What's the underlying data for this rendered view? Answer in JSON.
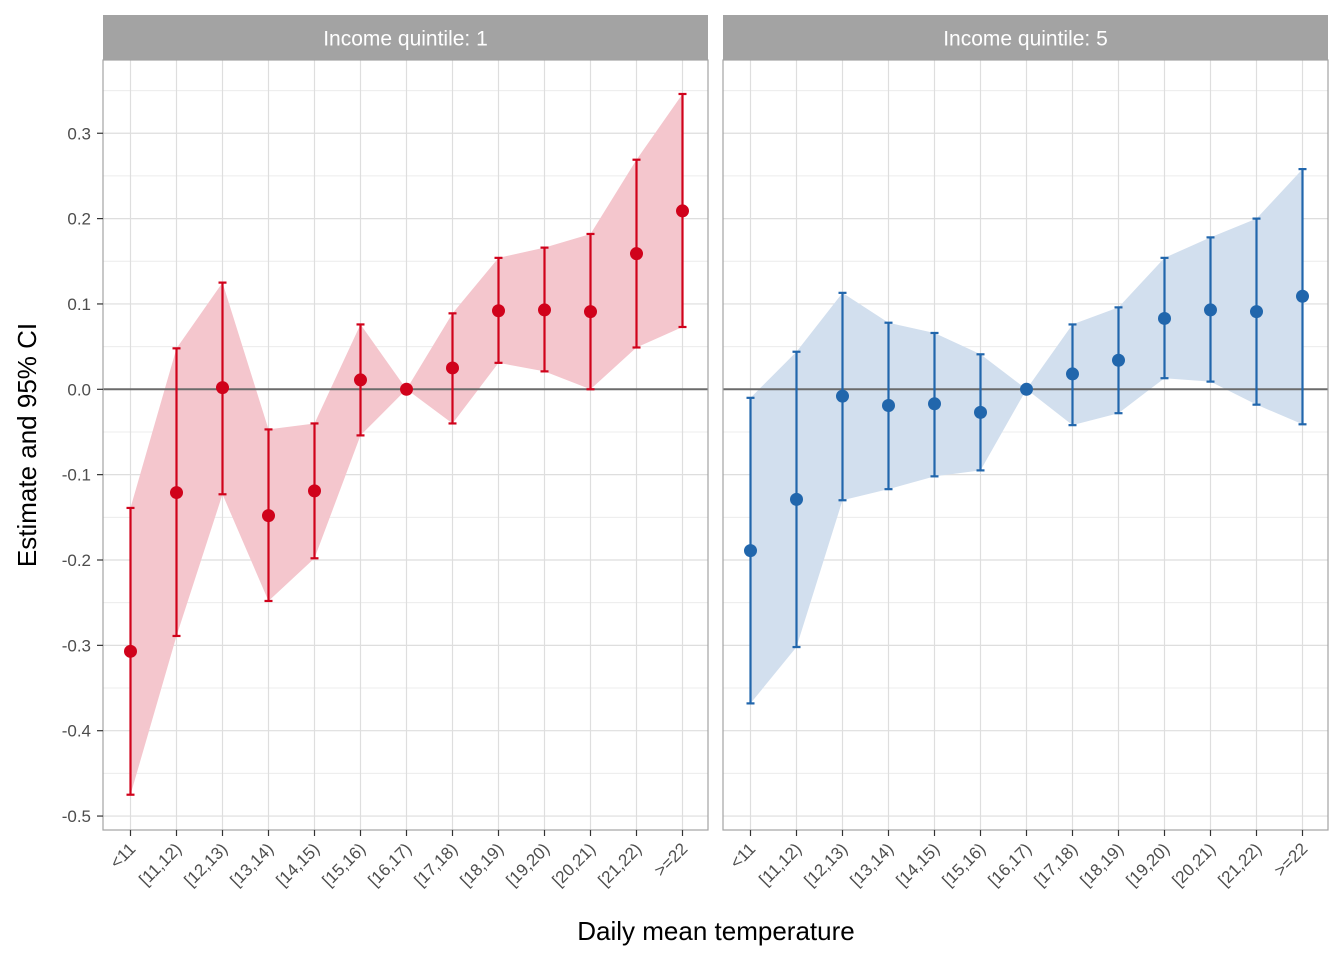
{
  "chart_data": {
    "type": "scatter",
    "xlabel": "Daily mean temperature",
    "ylabel": "Estimate and 95% CI",
    "categories": [
      "<11",
      "[11,12)",
      "[12,13)",
      "[13,14)",
      "[14,15)",
      "[15,16)",
      "[16,17)",
      "[17,18)",
      "[18,19)",
      "[19,20)",
      "[20,21)",
      "[21,22)",
      ">=22"
    ],
    "ylim": [
      -0.52,
      0.38
    ],
    "yticks": [
      -0.5,
      -0.4,
      -0.3,
      -0.2,
      -0.1,
      0.0,
      0.1,
      0.2,
      0.3
    ],
    "ytick_labels": [
      "-0.5",
      "-0.4",
      "-0.3",
      "-0.2",
      "-0.1",
      "0.0",
      "0.1",
      "0.2",
      "0.3"
    ],
    "reference_line": 0,
    "grid": true,
    "panels": [
      {
        "strip_label": "Income quintile: 1",
        "color": "#d0021b",
        "ribbon_color": "#f4c6cd",
        "estimate": [
          -0.307,
          -0.121,
          0.002,
          -0.148,
          -0.119,
          0.011,
          0.0,
          0.025,
          0.092,
          0.093,
          0.091,
          0.159,
          0.209
        ],
        "lower": [
          -0.475,
          -0.289,
          -0.123,
          -0.248,
          -0.198,
          -0.054,
          0.0,
          -0.04,
          0.031,
          0.021,
          0.0,
          0.049,
          0.073
        ],
        "upper": [
          -0.139,
          0.048,
          0.125,
          -0.047,
          -0.04,
          0.076,
          0.0,
          0.089,
          0.154,
          0.166,
          0.182,
          0.269,
          0.346
        ]
      },
      {
        "strip_label": "Income quintile: 5",
        "color": "#2166ac",
        "ribbon_color": "#d2dfee",
        "estimate": [
          -0.189,
          -0.129,
          -0.008,
          -0.019,
          -0.017,
          -0.027,
          0.0,
          0.018,
          0.034,
          0.083,
          0.093,
          0.091,
          0.109
        ],
        "lower": [
          -0.368,
          -0.302,
          -0.13,
          -0.117,
          -0.102,
          -0.095,
          0.0,
          -0.042,
          -0.028,
          0.013,
          0.009,
          -0.018,
          -0.041
        ],
        "upper": [
          -0.01,
          0.044,
          0.113,
          0.078,
          0.066,
          0.041,
          0.0,
          0.076,
          0.096,
          0.154,
          0.178,
          0.2,
          0.258
        ]
      }
    ]
  }
}
